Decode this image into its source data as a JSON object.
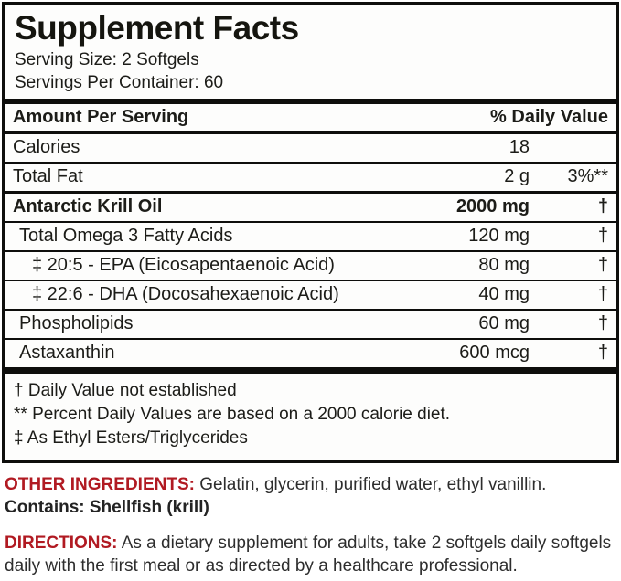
{
  "label": {
    "title": "Supplement Facts",
    "serving_size": "Serving Size: 2 Softgels",
    "servings_per_container": "Servings Per Container: 60",
    "header": {
      "amount_per_serving": "Amount Per Serving",
      "daily_value": "% Daily Value"
    },
    "rows": [
      {
        "name": "Calories",
        "amount": "18",
        "dv": ""
      },
      {
        "name": "Total Fat",
        "amount": "2 g",
        "dv": "3%**"
      },
      {
        "name": "Antarctic Krill Oil",
        "amount": "2000 mg",
        "dv": "†"
      },
      {
        "name": "Total Omega 3 Fatty Acids",
        "amount": "120 mg",
        "dv": "†"
      },
      {
        "name": "‡ 20:5 - EPA (Eicosapentaenoic Acid)",
        "amount": "80 mg",
        "dv": "†"
      },
      {
        "name": "‡ 22:6 - DHA (Docosahexaenoic Acid)",
        "amount": "40 mg",
        "dv": "†"
      },
      {
        "name": "Phospholipids",
        "amount": "60 mg",
        "dv": "†"
      },
      {
        "name": "Astaxanthin",
        "amount": "600 mcg",
        "dv": "†"
      }
    ],
    "footnotes": [
      "† Daily Value not established",
      "** Percent Daily Values are based on a 2000 calorie diet.",
      "‡ As Ethyl Esters/Triglycerides"
    ]
  },
  "other_ingredients": {
    "label": "OTHER INGREDIENTS:",
    "text": " Gelatin, glycerin, purified water, ethyl vanillin.",
    "contains": "Contains: Shellfish (krill)"
  },
  "directions": {
    "label": "DIRECTIONS:",
    "text": " As a dietary supplement for adults, take 2 softgels daily softgels daily with the first meal or as directed by a healthcare professional."
  },
  "colors": {
    "accent_red": "#b11a22",
    "border_black": "#0e0e0c"
  }
}
